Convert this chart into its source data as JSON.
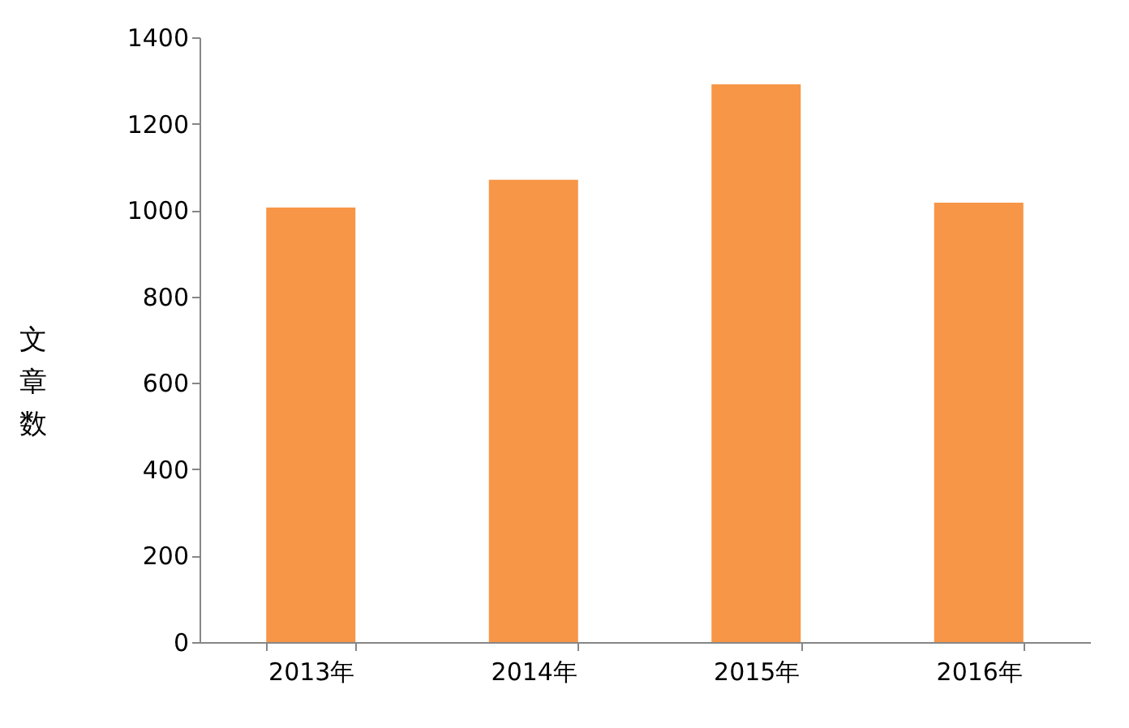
{
  "chart_data": {
    "type": "bar",
    "ylabel": "文章数",
    "categories": [
      "2013年",
      "2014年",
      "2015年",
      "2016年"
    ],
    "values": [
      1006,
      1070,
      1291,
      1017
    ],
    "color": "#f79646",
    "ylim": [
      0,
      1400
    ],
    "yticks": [
      0,
      200,
      400,
      600,
      800,
      1000,
      1200,
      1400
    ],
    "grid": false
  }
}
